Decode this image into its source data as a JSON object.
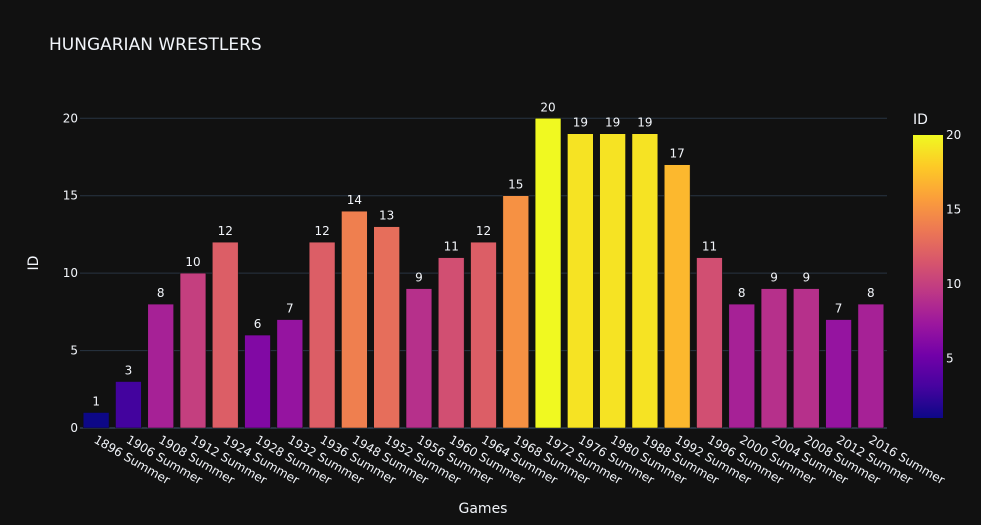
{
  "chart_data": {
    "type": "bar",
    "title": "HUNGARIAN WRESTLERS",
    "xlabel": "Games",
    "ylabel": "ID",
    "categories": [
      "1896 Summer",
      "1906 Summer",
      "1908 Summer",
      "1912 Summer",
      "1924 Summer",
      "1928 Summer",
      "1932 Summer",
      "1936 Summer",
      "1948 Summer",
      "1952 Summer",
      "1956 Summer",
      "1960 Summer",
      "1964 Summer",
      "1968 Summer",
      "1972 Summer",
      "1976 Summer",
      "1980 Summer",
      "1988 Summer",
      "1992 Summer",
      "1996 Summer",
      "2000 Summer",
      "2004 Summer",
      "2008 Summer",
      "2012 Summer",
      "2016 Summer"
    ],
    "values": [
      1,
      3,
      8,
      10,
      12,
      6,
      7,
      12,
      14,
      13,
      9,
      11,
      12,
      15,
      20,
      19,
      19,
      19,
      17,
      11,
      8,
      9,
      9,
      7,
      8
    ],
    "ylim": [
      0,
      21.05
    ],
    "yticks": [
      0,
      5,
      10,
      15,
      20
    ],
    "grid": true,
    "colorbar": {
      "title": "ID",
      "range": [
        1,
        20
      ],
      "ticks": [
        5,
        10,
        15,
        20
      ],
      "colorscale": [
        "#0d0887",
        "#46039f",
        "#7201a8",
        "#9c179e",
        "#bd3786",
        "#d8576b",
        "#ed7953",
        "#fb9f3a",
        "#fdca26",
        "#f0f921"
      ]
    },
    "background": "#111111",
    "text_color": "#f2f5fa",
    "grid_color": "#283442"
  }
}
